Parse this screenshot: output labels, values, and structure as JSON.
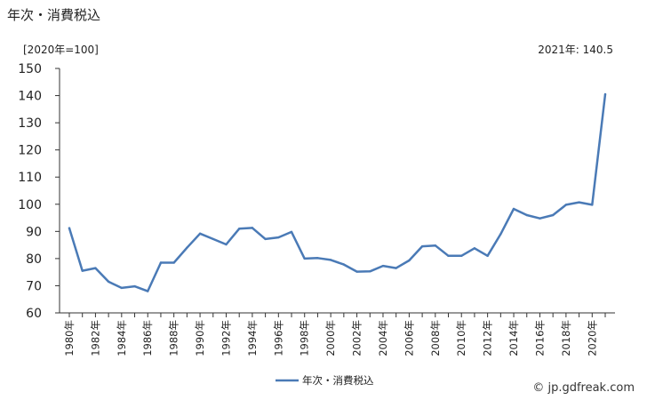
{
  "title": "年次・消費税込",
  "unit_label": "[2020年=100]",
  "latest_label": "2021年: 140.5",
  "credit": "© jp.gdfreak.com",
  "colors": {
    "line": "#4a7ab6",
    "axis": "#333333"
  },
  "chart_data": {
    "type": "line",
    "title": "年次・消費税込",
    "ylim": [
      60,
      150
    ],
    "yticks": [
      60,
      70,
      80,
      90,
      100,
      110,
      120,
      130,
      140,
      150
    ],
    "x_tick_labels": [
      "1980年",
      "1982年",
      "1984年",
      "1986年",
      "1988年",
      "1990年",
      "1992年",
      "1994年",
      "1996年",
      "1998年",
      "2000年",
      "2002年",
      "2004年",
      "2006年",
      "2008年",
      "2010年",
      "2012年",
      "2014年",
      "2016年",
      "2018年",
      "2020年"
    ],
    "grid": false,
    "legend": "bottom",
    "series": [
      {
        "name": "年次・消費税込",
        "x": [
          1980,
          1981,
          1982,
          1983,
          1984,
          1985,
          1986,
          1987,
          1988,
          1989,
          1990,
          1991,
          1992,
          1993,
          1994,
          1995,
          1996,
          1997,
          1998,
          1999,
          2000,
          2001,
          2002,
          2003,
          2004,
          2005,
          2006,
          2007,
          2008,
          2009,
          2010,
          2011,
          2012,
          2013,
          2014,
          2015,
          2016,
          2017,
          2018,
          2019,
          2020,
          2021
        ],
        "values": [
          91.2,
          75.5,
          76.5,
          71.5,
          69.2,
          69.8,
          68.0,
          78.5,
          78.5,
          84.0,
          89.2,
          87.2,
          85.2,
          91.0,
          91.3,
          87.2,
          87.8,
          89.8,
          80.0,
          80.2,
          79.5,
          77.8,
          75.2,
          75.3,
          77.3,
          76.5,
          79.3,
          84.5,
          84.8,
          81.0,
          81.0,
          83.8,
          81.0,
          89.0,
          98.3,
          96.0,
          94.8,
          96.0,
          99.8,
          100.7,
          99.8,
          140.5
        ]
      }
    ]
  }
}
